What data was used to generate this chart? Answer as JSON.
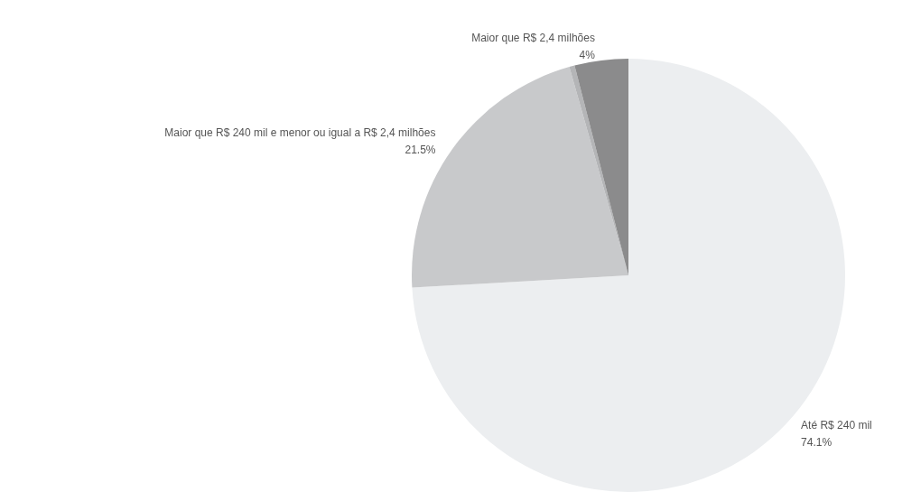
{
  "chart_data": {
    "type": "pie",
    "categories": [
      "Até R$ 240 mil",
      "Maior que R$ 240 mil e menor ou igual a R$ 2,4 milhões",
      null,
      "Maior que R$ 2,4 milhões"
    ],
    "values": [
      74.1,
      21.5,
      0.4,
      4
    ],
    "value_labels": [
      "74.1%",
      "21.5%",
      null,
      "4%"
    ],
    "colors": [
      "#eceef0",
      "#c8c9cb",
      "#b4b5b7",
      "#8b8b8c"
    ],
    "legend": false
  }
}
